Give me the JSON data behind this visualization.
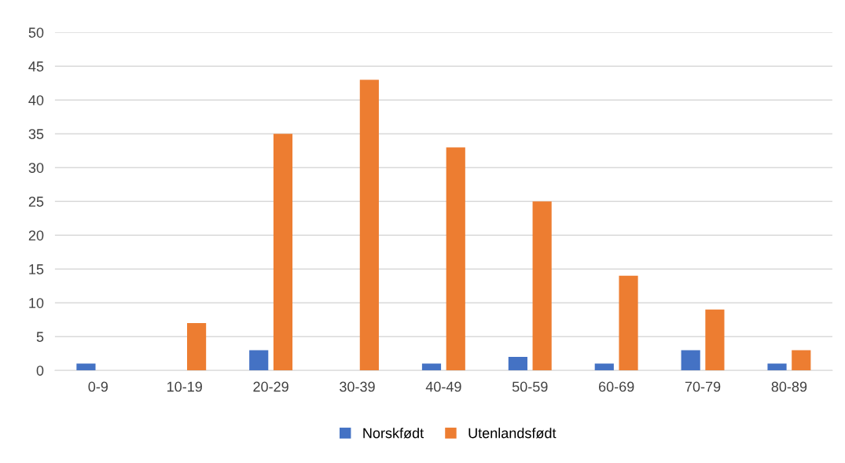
{
  "chart_data": {
    "type": "bar",
    "categories": [
      "0-9",
      "10-19",
      "20-29",
      "30-39",
      "40-49",
      "50-59",
      "60-69",
      "70-79",
      "80-89"
    ],
    "series": [
      {
        "name": "Norskfødt",
        "color": "#4472c4",
        "values": [
          1,
          0,
          3,
          0,
          1,
          2,
          1,
          3,
          1
        ]
      },
      {
        "name": "Utenlandsfødt",
        "color": "#ed7d31",
        "values": [
          0,
          7,
          35,
          43,
          33,
          25,
          14,
          9,
          3
        ]
      }
    ],
    "ylim": [
      0,
      50
    ],
    "yticks": [
      0,
      5,
      10,
      15,
      20,
      25,
      30,
      35,
      40,
      45,
      50
    ],
    "grid": "y",
    "legend": "bottom"
  }
}
